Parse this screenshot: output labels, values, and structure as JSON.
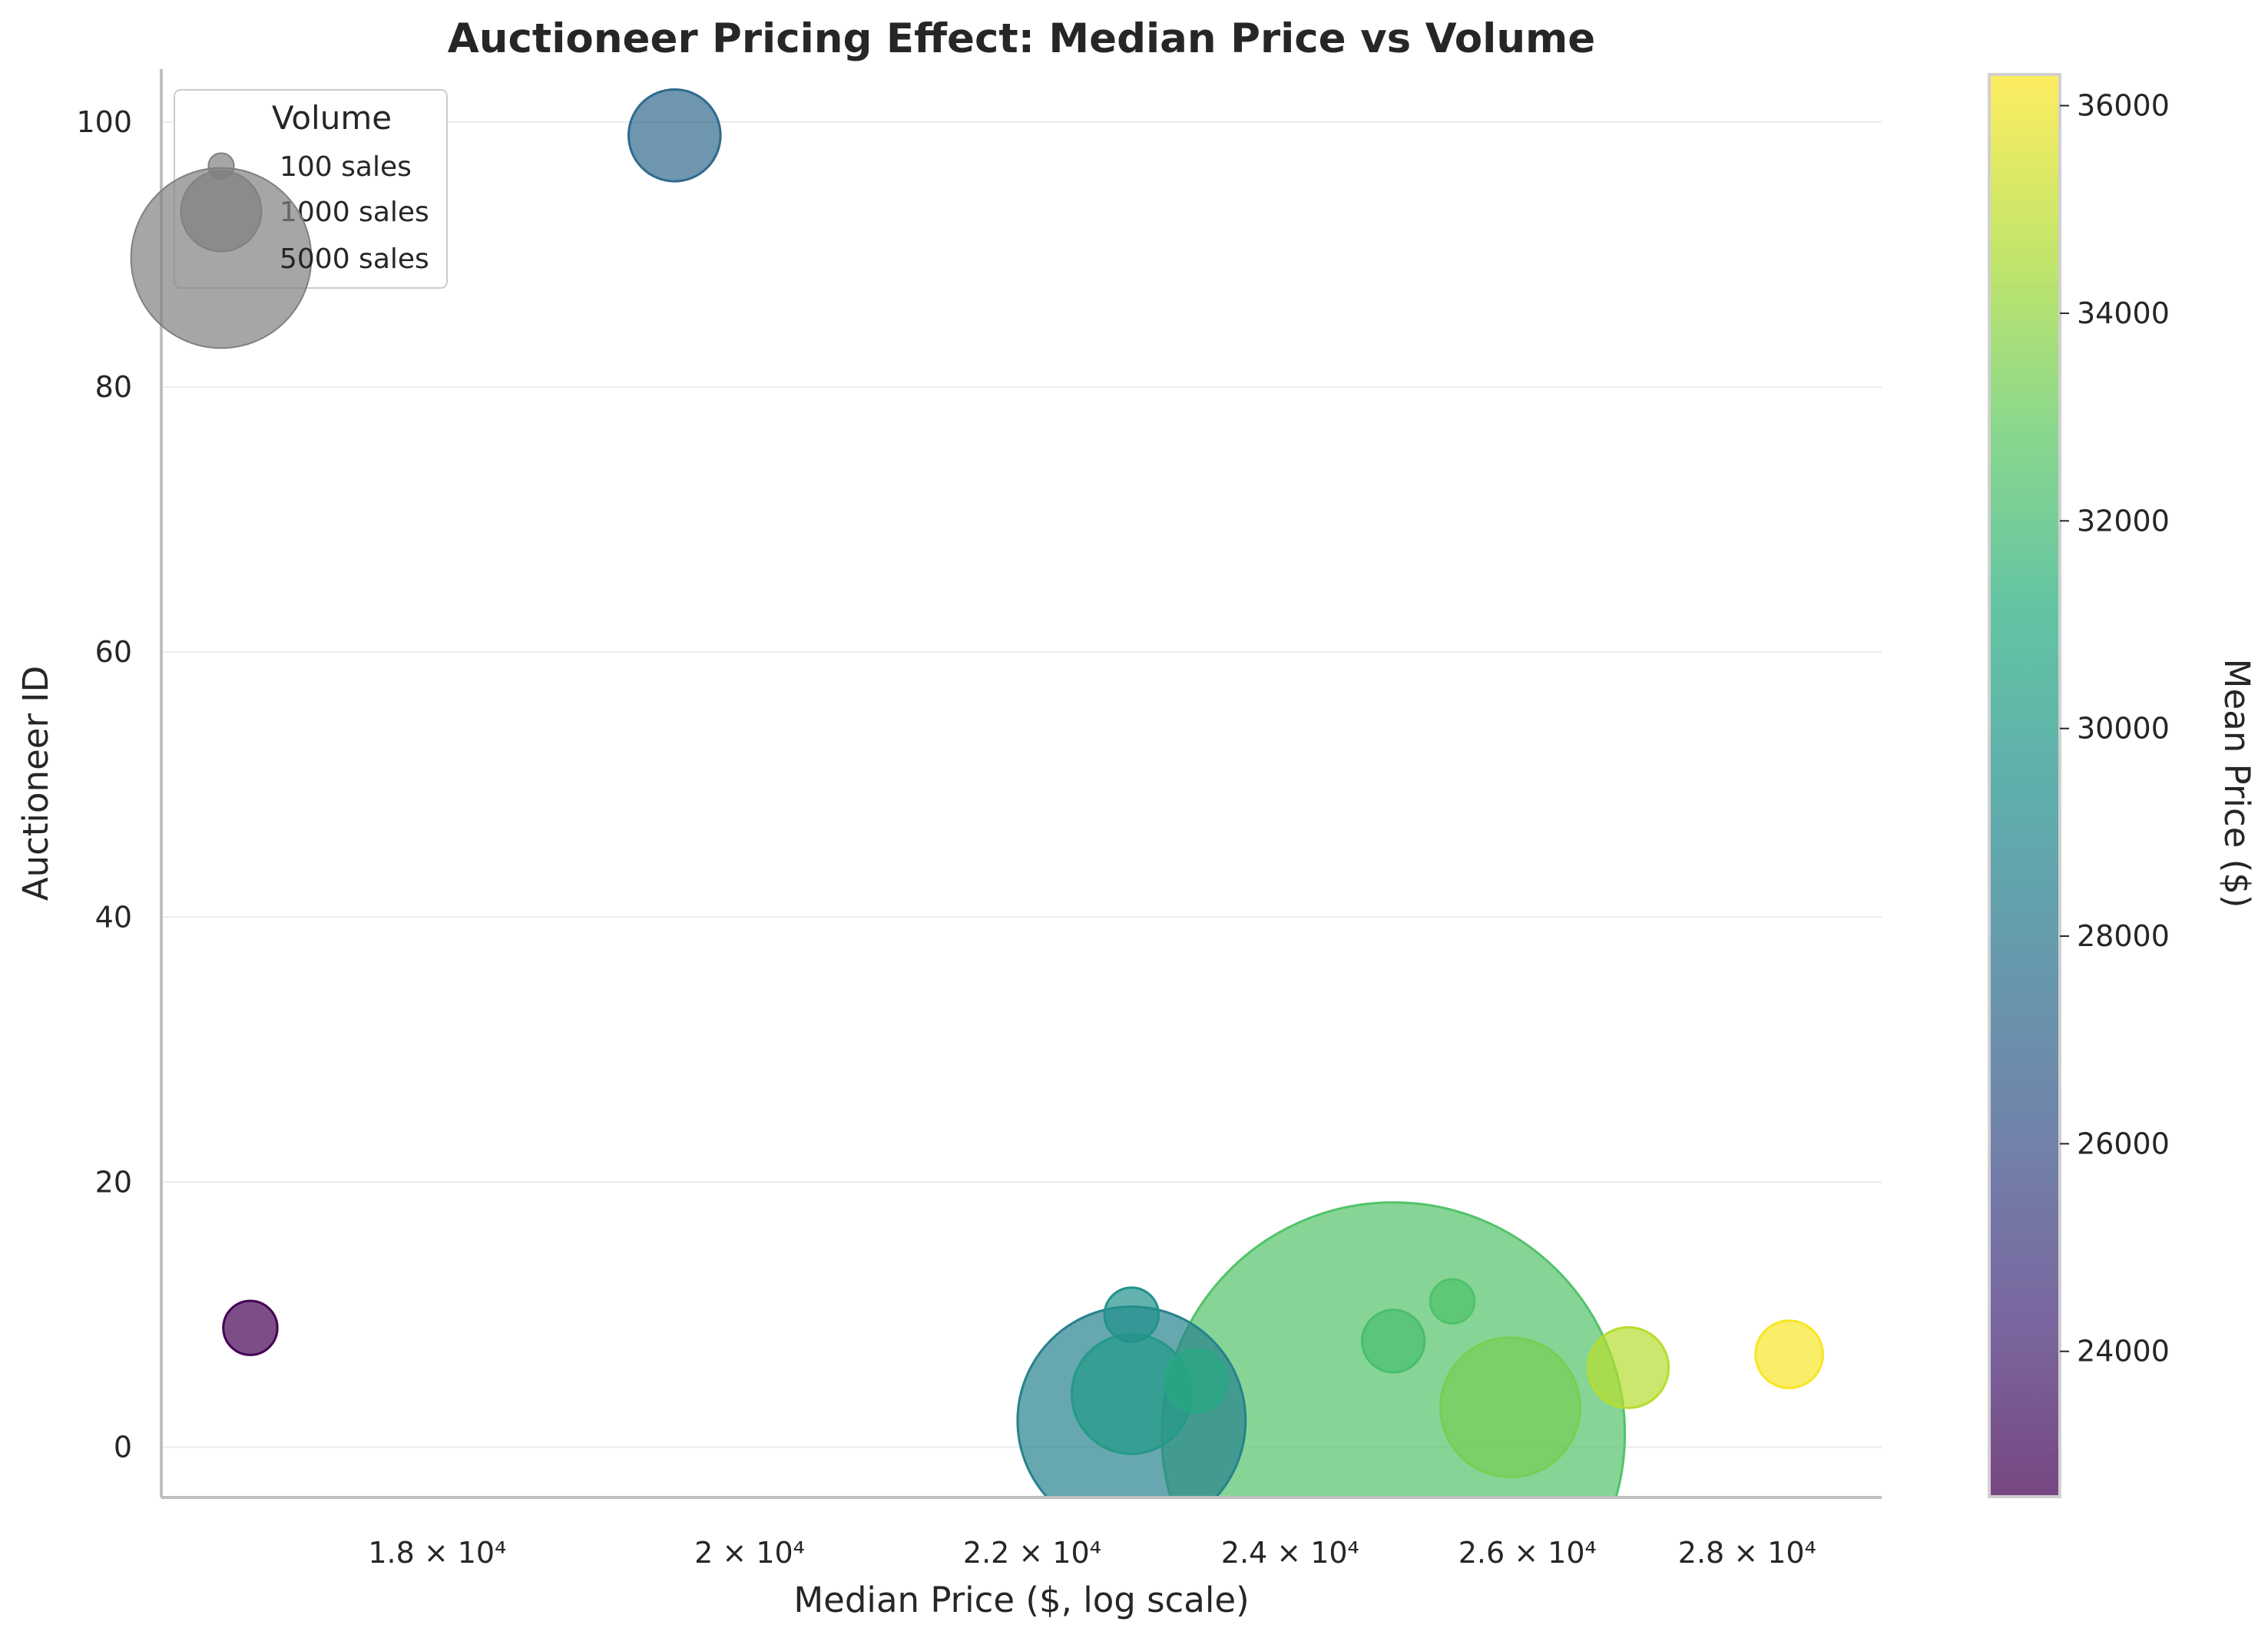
{
  "chart_data": {
    "type": "scatter",
    "title": "Auctioneer Pricing Effect: Median Price vs Volume",
    "xlabel": "Median Price ($, log scale)",
    "ylabel": "Auctioneer ID",
    "x_scale": "log",
    "xlim": [
      16400,
      29300
    ],
    "ylim": [
      -3.8,
      104
    ],
    "x_ticks": [
      {
        "value": 18000,
        "label": "1.8 × 10⁴"
      },
      {
        "value": 20000,
        "label": "2 × 10⁴"
      },
      {
        "value": 22000,
        "label": "2.2 × 10⁴"
      },
      {
        "value": 24000,
        "label": "2.4 × 10⁴"
      },
      {
        "value": 26000,
        "label": "2.6 × 10⁴"
      },
      {
        "value": 28000,
        "label": "2.8 × 10⁴"
      }
    ],
    "y_ticks": [
      0,
      20,
      40,
      60,
      80,
      100
    ],
    "grid": "horizontal",
    "legend": {
      "title": "Volume",
      "position": "top-left",
      "entries": [
        {
          "label": "100 sales",
          "volume": 100
        },
        {
          "label": "1000 sales",
          "volume": 1000
        },
        {
          "label": "5000 sales",
          "volume": 5000
        }
      ]
    },
    "colorbar": {
      "label": "Mean Price ($)",
      "colormap": "viridis",
      "range": [
        22600,
        36300
      ],
      "ticks": [
        24000,
        26000,
        28000,
        30000,
        32000,
        34000,
        36000
      ]
    },
    "points": [
      {
        "id": 9,
        "median_price": 16900,
        "volume": 450,
        "mean_price": 22600
      },
      {
        "id": 99,
        "median_price": 19500,
        "volume": 1300,
        "mean_price": 27300
      },
      {
        "id": 2,
        "median_price": 22750,
        "volume": 8000,
        "mean_price": 28600
      },
      {
        "id": 10,
        "median_price": 22750,
        "volume": 450,
        "mean_price": 29500
      },
      {
        "id": 4,
        "median_price": 22750,
        "volume": 2200,
        "mean_price": 30000
      },
      {
        "id": 5,
        "median_price": 23250,
        "volume": 600,
        "mean_price": 30800
      },
      {
        "id": 1,
        "median_price": 24850,
        "volume": 33000,
        "mean_price": 32500
      },
      {
        "id": 8,
        "median_price": 24850,
        "volume": 600,
        "mean_price": 32200
      },
      {
        "id": 11,
        "median_price": 25350,
        "volume": 300,
        "mean_price": 32400
      },
      {
        "id": 3,
        "median_price": 25850,
        "volume": 3000,
        "mean_price": 33400
      },
      {
        "id": 6,
        "median_price": 26900,
        "volume": 1000,
        "mean_price": 34800
      },
      {
        "id": 7,
        "median_price": 28400,
        "volume": 700,
        "mean_price": 36200
      }
    ]
  }
}
